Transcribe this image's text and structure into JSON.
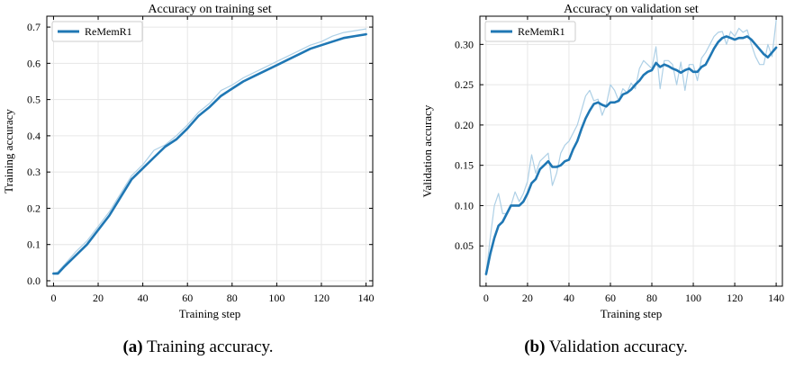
{
  "colors": {
    "line": "#1f77b4",
    "raw_line": "#aed0e6",
    "grid": "#e6e6e6"
  },
  "figures": [
    {
      "caption_tag": "(a)",
      "caption_text": "Training accuracy.",
      "chart_data": {
        "type": "line",
        "title": "Accuracy on training set",
        "xlabel": "Training step",
        "ylabel": "Training accuracy",
        "xlim": [
          -3,
          143
        ],
        "ylim": [
          -0.015,
          0.73
        ],
        "xticks": [
          0,
          20,
          40,
          60,
          80,
          100,
          120,
          140
        ],
        "yticks": [
          0.0,
          0.1,
          0.2,
          0.3,
          0.4,
          0.5,
          0.6,
          0.7
        ],
        "ytick_labels": [
          "0.0",
          "0.1",
          "0.2",
          "0.3",
          "0.4",
          "0.5",
          "0.6",
          "0.7"
        ],
        "grid": true,
        "legend": "top-left",
        "series": [
          {
            "name": "ReMemR1",
            "style": "smoothed",
            "x": [
              0,
              2,
              5,
              10,
              15,
              20,
              25,
              30,
              35,
              40,
              45,
              50,
              55,
              60,
              65,
              70,
              75,
              80,
              85,
              90,
              95,
              100,
              105,
              110,
              115,
              120,
              125,
              130,
              135,
              140
            ],
            "y": [
              0.02,
              0.02,
              0.04,
              0.07,
              0.1,
              0.14,
              0.18,
              0.23,
              0.28,
              0.31,
              0.34,
              0.37,
              0.39,
              0.42,
              0.455,
              0.48,
              0.51,
              0.53,
              0.55,
              0.565,
              0.58,
              0.595,
              0.61,
              0.625,
              0.64,
              0.65,
              0.66,
              0.67,
              0.675,
              0.68
            ]
          },
          {
            "style": "raw",
            "x": [
              0,
              2,
              5,
              10,
              15,
              20,
              25,
              30,
              35,
              40,
              45,
              50,
              55,
              60,
              65,
              70,
              75,
              80,
              85,
              90,
              95,
              100,
              105,
              110,
              115,
              120,
              125,
              130,
              135,
              140
            ],
            "y": [
              0.02,
              0.025,
              0.045,
              0.08,
              0.11,
              0.15,
              0.19,
              0.24,
              0.29,
              0.32,
              0.36,
              0.375,
              0.4,
              0.43,
              0.465,
              0.49,
              0.525,
              0.54,
              0.56,
              0.575,
              0.59,
              0.605,
              0.62,
              0.635,
              0.65,
              0.66,
              0.675,
              0.685,
              0.69,
              0.695
            ]
          }
        ]
      }
    },
    {
      "caption_tag": "(b)",
      "caption_text": "Validation accuracy.",
      "chart_data": {
        "type": "line",
        "title": "Accuracy on validation set",
        "xlabel": "Training step",
        "ylabel": "Validation accuracy",
        "xlim": [
          -3,
          143
        ],
        "ylim": [
          0.0,
          0.335
        ],
        "xticks": [
          0,
          20,
          40,
          60,
          80,
          100,
          120,
          140
        ],
        "yticks": [
          0.05,
          0.1,
          0.15,
          0.2,
          0.25,
          0.3
        ],
        "ytick_labels": [
          "0.05",
          "0.10",
          "0.15",
          "0.20",
          "0.25",
          "0.30"
        ],
        "grid": true,
        "legend": "top-left",
        "series": [
          {
            "name": "ReMemR1",
            "style": "smoothed",
            "x": [
              0,
              2,
              4,
              6,
              8,
              10,
              12,
              14,
              16,
              18,
              20,
              22,
              24,
              26,
              28,
              30,
              32,
              34,
              36,
              38,
              40,
              42,
              44,
              46,
              48,
              50,
              52,
              54,
              56,
              58,
              60,
              62,
              64,
              66,
              68,
              70,
              72,
              74,
              76,
              78,
              80,
              82,
              84,
              86,
              88,
              90,
              92,
              94,
              96,
              98,
              100,
              102,
              104,
              106,
              108,
              110,
              112,
              114,
              116,
              118,
              120,
              122,
              124,
              126,
              128,
              130,
              132,
              134,
              136,
              138,
              140
            ],
            "y": [
              0.015,
              0.04,
              0.06,
              0.075,
              0.08,
              0.09,
              0.1,
              0.1,
              0.1,
              0.105,
              0.115,
              0.128,
              0.133,
              0.145,
              0.15,
              0.155,
              0.148,
              0.148,
              0.15,
              0.155,
              0.157,
              0.17,
              0.18,
              0.195,
              0.208,
              0.218,
              0.226,
              0.228,
              0.225,
              0.223,
              0.228,
              0.228,
              0.23,
              0.238,
              0.24,
              0.244,
              0.25,
              0.255,
              0.262,
              0.266,
              0.268,
              0.277,
              0.272,
              0.275,
              0.273,
              0.27,
              0.268,
              0.265,
              0.268,
              0.27,
              0.266,
              0.266,
              0.272,
              0.275,
              0.285,
              0.295,
              0.303,
              0.308,
              0.31,
              0.308,
              0.306,
              0.308,
              0.308,
              0.31,
              0.306,
              0.3,
              0.294,
              0.288,
              0.284,
              0.29,
              0.296
            ]
          },
          {
            "style": "raw",
            "x": [
              0,
              2,
              4,
              6,
              8,
              10,
              12,
              14,
              16,
              18,
              20,
              22,
              24,
              26,
              28,
              30,
              32,
              34,
              36,
              38,
              40,
              42,
              44,
              46,
              48,
              50,
              52,
              54,
              56,
              58,
              60,
              62,
              64,
              66,
              68,
              70,
              72,
              74,
              76,
              78,
              80,
              82,
              84,
              86,
              88,
              90,
              92,
              94,
              96,
              98,
              100,
              102,
              104,
              106,
              108,
              110,
              112,
              114,
              116,
              118,
              120,
              122,
              124,
              126,
              128,
              130,
              132,
              134,
              136,
              138,
              140
            ],
            "y": [
              0.015,
              0.06,
              0.1,
              0.115,
              0.09,
              0.09,
              0.1,
              0.117,
              0.105,
              0.115,
              0.13,
              0.163,
              0.14,
              0.155,
              0.16,
              0.165,
              0.125,
              0.14,
              0.165,
              0.175,
              0.18,
              0.19,
              0.2,
              0.218,
              0.236,
              0.243,
              0.23,
              0.232,
              0.212,
              0.225,
              0.25,
              0.243,
              0.23,
              0.245,
              0.24,
              0.252,
              0.245,
              0.27,
              0.28,
              0.275,
              0.27,
              0.297,
              0.245,
              0.28,
              0.28,
              0.275,
              0.25,
              0.278,
              0.243,
              0.275,
              0.275,
              0.255,
              0.283,
              0.29,
              0.3,
              0.31,
              0.315,
              0.316,
              0.3,
              0.316,
              0.31,
              0.32,
              0.315,
              0.318,
              0.3,
              0.285,
              0.275,
              0.275,
              0.3,
              0.285,
              0.33
            ]
          }
        ]
      }
    }
  ]
}
